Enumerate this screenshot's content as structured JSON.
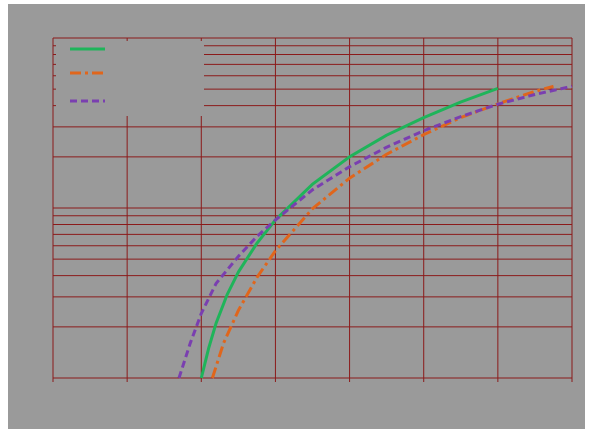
{
  "chart_data": {
    "type": "line",
    "title": "",
    "xlabel": "",
    "ylabel": "",
    "xscale": "linear",
    "yscale": "log",
    "xlim": [
      0,
      7
    ],
    "ylim": [
      0.1,
      10
    ],
    "grid": true,
    "legend": {
      "position": "top-left",
      "entries": [
        "",
        "",
        ""
      ]
    },
    "colors": {
      "background": "#9a9a9a",
      "grid": "#8b1a1a",
      "series": [
        "#1fb45a",
        "#e0661c",
        "#7a3fb0"
      ]
    },
    "series": [
      {
        "name": "",
        "style": "solid",
        "color": "#1fb45a",
        "x": [
          2.0,
          2.1,
          2.2,
          2.35,
          2.5,
          2.75,
          3.0,
          3.5,
          4.0,
          4.5,
          5.0,
          5.5,
          6.0
        ],
        "y": [
          0.1,
          0.15,
          0.21,
          0.31,
          0.42,
          0.62,
          0.85,
          1.38,
          2.0,
          2.68,
          3.4,
          4.2,
          5.05
        ]
      },
      {
        "name": "",
        "style": "dashdot",
        "color": "#e0661c",
        "x": [
          2.15,
          2.3,
          2.5,
          2.75,
          3.0,
          3.5,
          4.0,
          4.5,
          5.0,
          5.5,
          6.0,
          6.5,
          6.75
        ],
        "y": [
          0.1,
          0.16,
          0.25,
          0.39,
          0.56,
          0.99,
          1.5,
          2.07,
          2.7,
          3.4,
          4.1,
          4.85,
          5.2
        ]
      },
      {
        "name": "",
        "style": "dashed",
        "color": "#7a3fb0",
        "x": [
          1.7,
          1.85,
          2.0,
          2.2,
          2.5,
          2.75,
          3.0,
          3.5,
          4.0,
          4.5,
          5.0,
          5.5,
          6.0,
          6.5,
          7.0
        ],
        "y": [
          0.1,
          0.16,
          0.24,
          0.36,
          0.52,
          0.68,
          0.85,
          1.28,
          1.75,
          2.28,
          2.85,
          3.45,
          4.08,
          4.65,
          5.2
        ]
      }
    ]
  }
}
